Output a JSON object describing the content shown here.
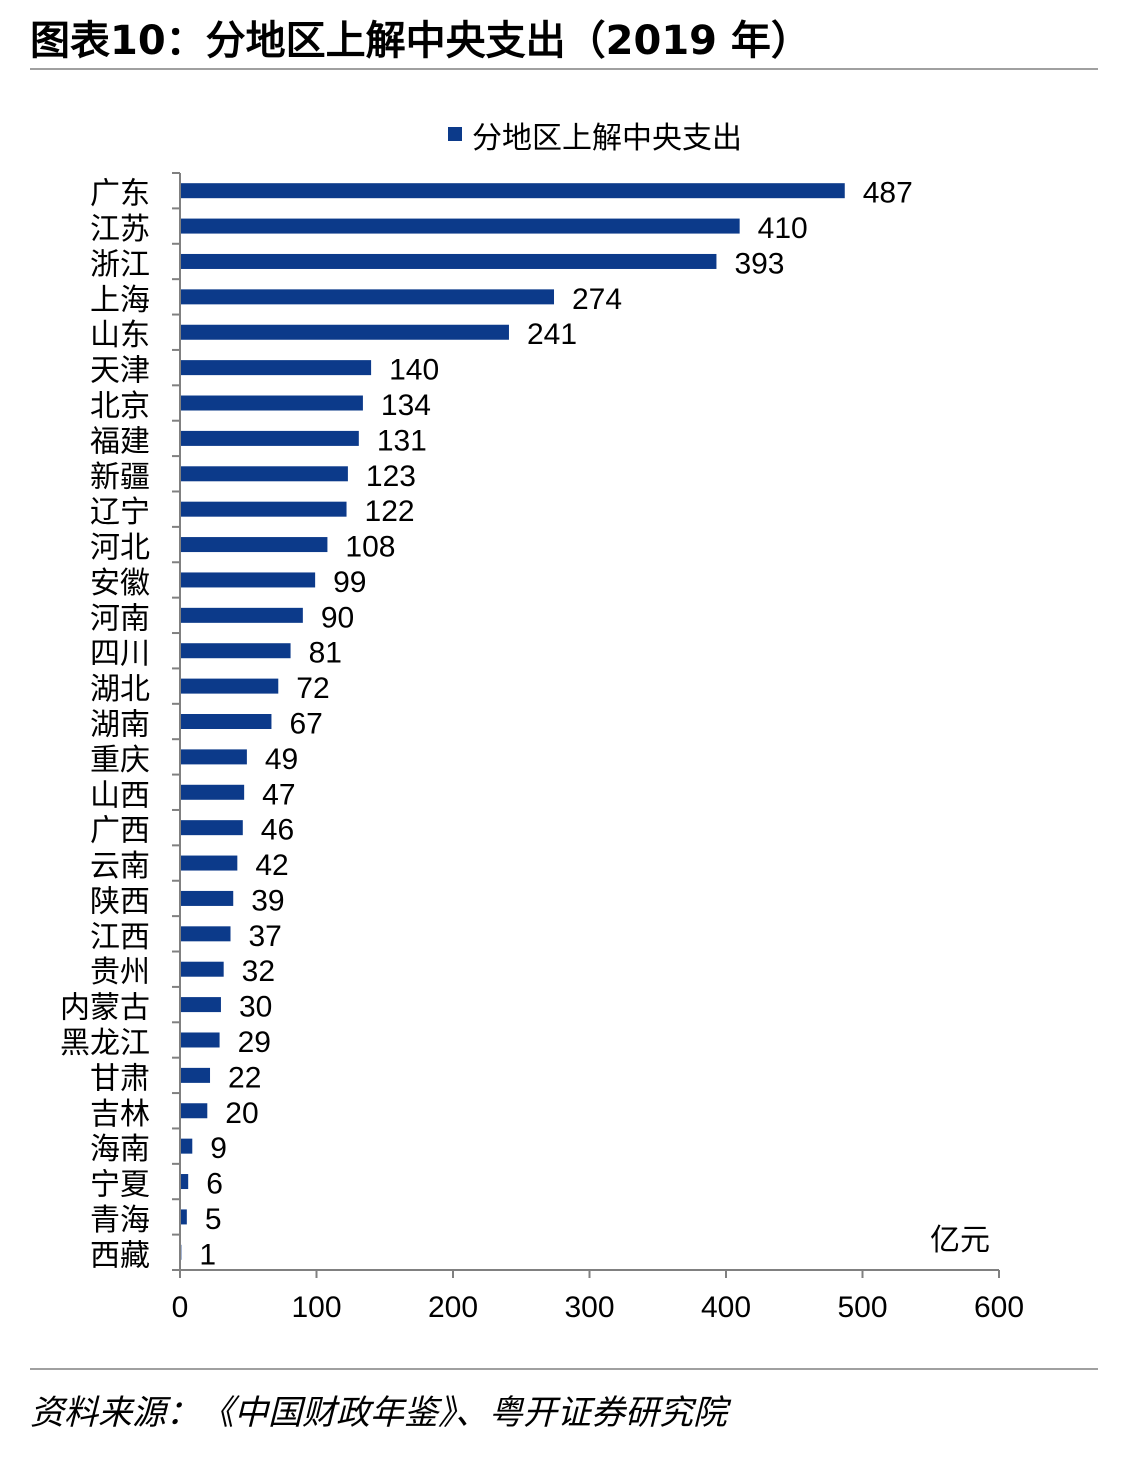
{
  "header": {
    "title": "图表10：分地区上解中央支出（2019 年）"
  },
  "footer": {
    "source": "资料来源：《中国财政年鉴》、粤开证券研究院"
  },
  "colors": {
    "bar": "#0c3a8a",
    "axis": "#808080",
    "rule": "#a0a0a0"
  },
  "chart_data": {
    "type": "bar",
    "orientation": "horizontal",
    "categories": [
      "广东",
      "江苏",
      "浙江",
      "上海",
      "山东",
      "天津",
      "北京",
      "福建",
      "新疆",
      "辽宁",
      "河北",
      "安徽",
      "河南",
      "四川",
      "湖北",
      "湖南",
      "重庆",
      "山西",
      "广西",
      "云南",
      "陕西",
      "江西",
      "贵州",
      "内蒙古",
      "黑龙江",
      "甘肃",
      "吉林",
      "海南",
      "宁夏",
      "青海",
      "西藏"
    ],
    "series": [
      {
        "name": "分地区上解中央支出",
        "values": [
          487,
          410,
          393,
          274,
          241,
          140,
          134,
          131,
          123,
          122,
          108,
          99,
          90,
          81,
          72,
          67,
          49,
          47,
          46,
          42,
          39,
          37,
          32,
          30,
          29,
          22,
          20,
          9,
          6,
          5,
          1
        ]
      }
    ],
    "data_labels": [
      "487",
      "410",
      "393",
      "274",
      "241",
      "140",
      "134",
      "131",
      "123",
      "122",
      "108",
      "99",
      "90",
      "81",
      "72",
      "67",
      "49",
      "47",
      "46",
      "42",
      "39",
      "37",
      "32",
      "30",
      "29",
      "22",
      "20",
      "9",
      "6",
      "5",
      "1"
    ],
    "xlim": [
      0,
      600
    ],
    "xticks": [
      "0",
      "100",
      "200",
      "300",
      "400",
      "500",
      "600"
    ],
    "unit_label": "亿元",
    "legend_position": "top",
    "grid": false
  }
}
